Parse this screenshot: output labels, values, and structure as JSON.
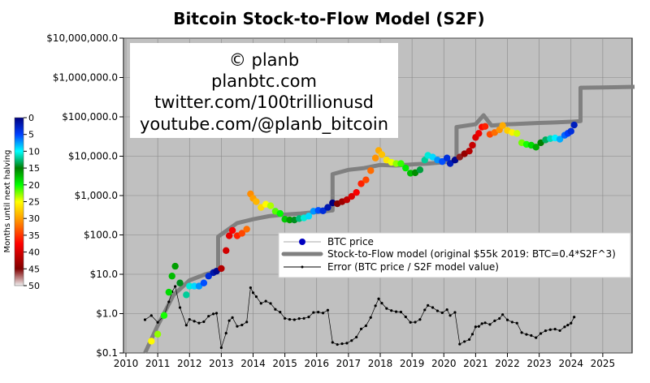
{
  "chart_data": {
    "type": "scatter",
    "title": "Bitcoin Stock-to-Flow Model (S2F)",
    "annotation_lines": [
      "© planb",
      "planbtc.com",
      "twitter.com/100trillionusd",
      "youtube.com/@planb_bitcoin"
    ],
    "y_scale": "log",
    "ylim": [
      0.1,
      10000000
    ],
    "xlim": [
      2010,
      2026
    ],
    "y_ticks": [
      0.1,
      1,
      10,
      100,
      1000,
      10000,
      100000,
      1000000,
      10000000
    ],
    "y_tick_labels": [
      "$0.1",
      "$1.0",
      "$10.0",
      "$100.0",
      "$1,000.0",
      "$10,000.0",
      "$100,000.0",
      "$1,000,000.0",
      "$10,000,000.0"
    ],
    "x_ticks": [
      2010,
      2011,
      2012,
      2013,
      2014,
      2015,
      2016,
      2017,
      2018,
      2019,
      2020,
      2021,
      2022,
      2023,
      2024,
      2025
    ],
    "x_tick_labels": [
      "2010",
      "2011",
      "2012",
      "2013",
      "2014",
      "2015",
      "2016",
      "2017",
      "2018",
      "2019",
      "2020",
      "2021",
      "2022",
      "2023",
      "2024",
      "2025"
    ],
    "grid": true,
    "background": "#c0c0c0",
    "legend_placement": "center-right",
    "legend": [
      "BTC price",
      "Stock-to-Flow model (original $55k 2019:  BTC=0.4*S2F^3)",
      "Error (BTC price / S2F model value)"
    ],
    "colorbar": {
      "label": "Months until next halving",
      "ticks": [
        "0",
        "5",
        "10",
        "15",
        "20",
        "25",
        "30",
        "35",
        "40",
        "45",
        "50"
      ],
      "range": [
        0,
        50
      ]
    },
    "halvings": [
      2012.9,
      2016.5,
      2020.4,
      2024.3
    ],
    "btc_price": {
      "x": [
        2010.6,
        2010.8,
        2011.0,
        2011.2,
        2011.35,
        2011.45,
        2011.55,
        2011.7,
        2011.9,
        2012.0,
        2012.15,
        2012.3,
        2012.45,
        2012.6,
        2012.75,
        2012.85,
        2013.0,
        2013.15,
        2013.25,
        2013.35,
        2013.5,
        2013.65,
        2013.8,
        2013.92,
        2014.0,
        2014.1,
        2014.25,
        2014.4,
        2014.55,
        2014.7,
        2014.85,
        2015.0,
        2015.15,
        2015.3,
        2015.45,
        2015.6,
        2015.75,
        2015.9,
        2016.05,
        2016.2,
        2016.35,
        2016.5,
        2016.65,
        2016.8,
        2016.95,
        2017.1,
        2017.25,
        2017.4,
        2017.55,
        2017.7,
        2017.85,
        2017.95,
        2018.05,
        2018.2,
        2018.35,
        2018.5,
        2018.65,
        2018.8,
        2018.95,
        2019.1,
        2019.25,
        2019.4,
        2019.5,
        2019.65,
        2019.8,
        2019.95,
        2020.1,
        2020.2,
        2020.35,
        2020.5,
        2020.65,
        2020.8,
        2020.9,
        2021.0,
        2021.1,
        2021.2,
        2021.3,
        2021.45,
        2021.6,
        2021.75,
        2021.85,
        2022.0,
        2022.15,
        2022.3,
        2022.45,
        2022.6,
        2022.75,
        2022.9,
        2023.05,
        2023.2,
        2023.35,
        2023.5,
        2023.65,
        2023.8,
        2023.9,
        2024.0,
        2024.1
      ],
      "y": [
        0.07,
        0.2,
        0.3,
        0.9,
        3.5,
        9,
        16,
        6,
        3,
        5,
        5,
        5,
        6,
        9,
        11,
        12,
        14,
        40,
        95,
        130,
        95,
        110,
        140,
        1100,
        850,
        700,
        500,
        600,
        550,
        400,
        350,
        250,
        240,
        240,
        260,
        270,
        300,
        400,
        420,
        410,
        500,
        650,
        620,
        700,
        780,
        950,
        1200,
        2000,
        2500,
        4300,
        9000,
        14000,
        11000,
        8000,
        7000,
        6500,
        6500,
        5000,
        3700,
        3800,
        4500,
        8000,
        10500,
        9500,
        8000,
        7300,
        9000,
        6500,
        8000,
        9500,
        11500,
        13500,
        19000,
        30000,
        38000,
        55000,
        57000,
        36000,
        40000,
        47000,
        60000,
        45000,
        40000,
        38000,
        22000,
        20000,
        19000,
        17000,
        22000,
        26000,
        28000,
        29000,
        27000,
        34000,
        38000,
        43000,
        62000
      ]
    },
    "s2f_model": {
      "x": [
        2010.6,
        2011.0,
        2011.5,
        2012.0,
        2012.5,
        2012.9,
        2012.9,
        2013.5,
        2014.0,
        2014.5,
        2015.0,
        2015.5,
        2016.0,
        2016.5,
        2016.5,
        2017.0,
        2017.5,
        2018.0,
        2018.5,
        2019.0,
        2019.5,
        2020.0,
        2020.4,
        2020.4,
        2021.0,
        2021.25,
        2021.5,
        2022.0,
        2022.5,
        2023.0,
        2023.5,
        2024.0,
        2024.3,
        2024.3,
        2025.0,
        2026.0
      ],
      "y": [
        0.1,
        0.5,
        3,
        7,
        10,
        12,
        90,
        200,
        250,
        300,
        330,
        350,
        380,
        420,
        3500,
        4500,
        5000,
        6000,
        5800,
        6200,
        6500,
        7000,
        7500,
        55000,
        65000,
        110000,
        60000,
        65000,
        67000,
        70000,
        72000,
        75000,
        78000,
        550000,
        560000,
        580000
      ]
    }
  }
}
